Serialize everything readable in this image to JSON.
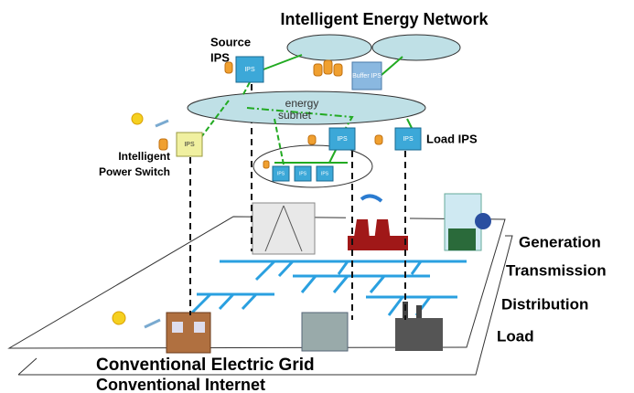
{
  "title": "Intelligent Energy Network",
  "annotations": {
    "source": [
      "Source",
      "IPS"
    ],
    "power_switch": [
      "Intelligent",
      "Power Switch"
    ],
    "load_ips": "Load IPS",
    "energy_subnet": [
      "energy",
      "subnet"
    ]
  },
  "boxes": [
    "IPS",
    "Buffer IPS",
    "IPS",
    "IPS",
    "IPS",
    "IPS",
    "IPS",
    "IPS"
  ],
  "layers": [
    "Generation",
    "Transmission",
    "Distribution",
    "Load"
  ],
  "planes": [
    "Conventional Electric Grid",
    "Conventional Internet"
  ]
}
